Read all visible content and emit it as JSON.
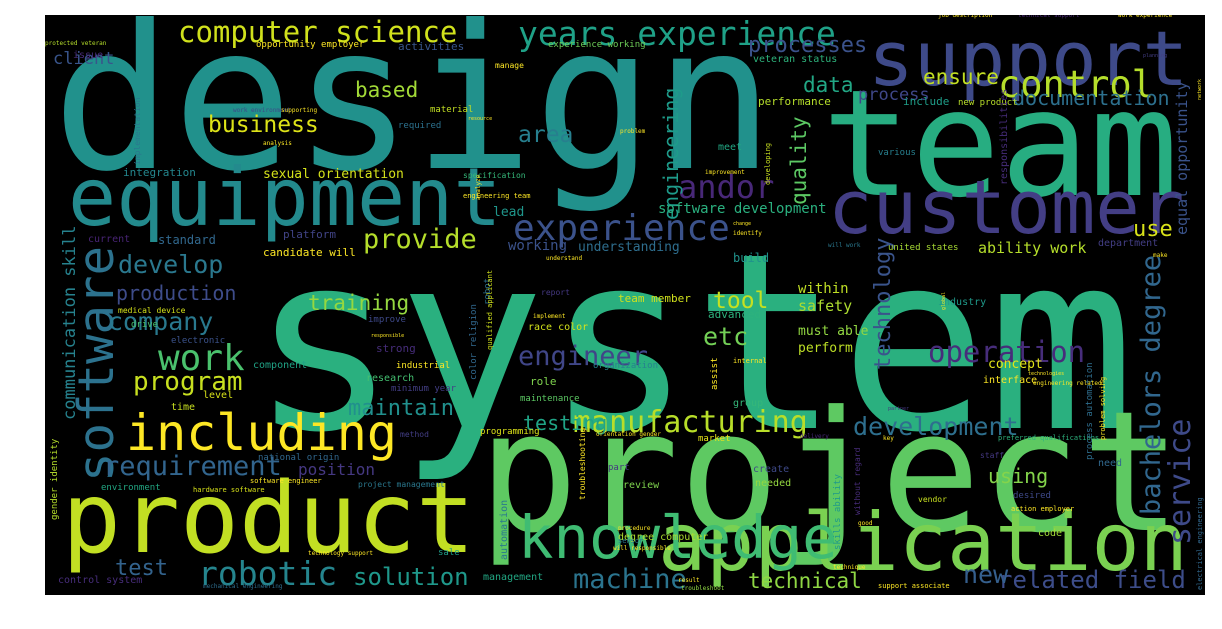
{
  "words": [
    "design",
    "system",
    "team",
    "support",
    "customer",
    "project",
    "product",
    "equipment",
    "including",
    "application",
    "knowledge",
    "software",
    "computer science",
    "years experience",
    "experience",
    "control",
    "andor",
    "work",
    "program",
    "company",
    "develop",
    "production",
    "requirement",
    "robotic",
    "solution",
    "test",
    "manufacturing",
    "development",
    "testing",
    "engineer",
    "operation",
    "technology",
    "quality",
    "engineering",
    "bachelors degree",
    "service",
    "machine",
    "technical",
    "related field",
    "new",
    "provide",
    "training",
    "tool",
    "etc",
    "maintain",
    "position",
    "using",
    "use",
    "ensure",
    "process",
    "processes",
    "data",
    "based",
    "business",
    "area",
    "client",
    "communication skill",
    "documentation",
    "equal opportunity",
    "safety",
    "within",
    "must able",
    "perform",
    "advanced",
    "concept",
    "interface",
    "industry",
    "ability work",
    "department",
    "team member",
    "understanding",
    "working",
    "software development",
    "sexual orientation",
    "integration",
    "lead",
    "platform",
    "candidate will",
    "standard",
    "current",
    "build",
    "united states",
    "race color",
    "engineering team",
    "specification",
    "experience working",
    "veteran status",
    "opportunity employer",
    "activities",
    "issue",
    "protected veteran",
    "performance",
    "include",
    "new product",
    "material",
    "required",
    "manage",
    "meet",
    "various",
    "implementation",
    "role",
    "research",
    "industrial",
    "minimum year",
    "strong",
    "improve",
    "component",
    "electronic",
    "drive",
    "level",
    "time",
    "medical device",
    "maintenance",
    "organization",
    "programming",
    "market",
    "group",
    "method",
    "national origin",
    "project management",
    "hardware software",
    "environment",
    "software engineer",
    "gender identity",
    "control system",
    "management",
    "review",
    "part",
    "needed",
    "create",
    "code",
    "desired",
    "need",
    "staff",
    "vendor",
    "action employer",
    "preferred qualifications",
    "degree computer",
    "sale",
    "technology support",
    "automation",
    "skills ability",
    "without regard",
    "process automation",
    "problem solving",
    "robot",
    "color religion",
    "qualified applicant",
    "responsibilities",
    "job description",
    "technical support",
    "work experience",
    "electrical engineering",
    "result",
    "troubleshoot",
    "support associate",
    "mechanical engineering",
    "troubleshooting",
    "good",
    "sensor",
    "procedure",
    "will responsible",
    "internal",
    "assist",
    "report",
    "implement",
    "understand",
    "identify",
    "change",
    "will work",
    "make",
    "analysis",
    "work environment",
    "supporting",
    "problem",
    "improvement",
    "developing",
    "planning",
    "network",
    "key",
    "partner",
    "technologies",
    "engineering related",
    "orientation gender",
    "delivery",
    "responsible",
    "resource",
    "technique",
    "global",
    "analyze"
  ]
}
